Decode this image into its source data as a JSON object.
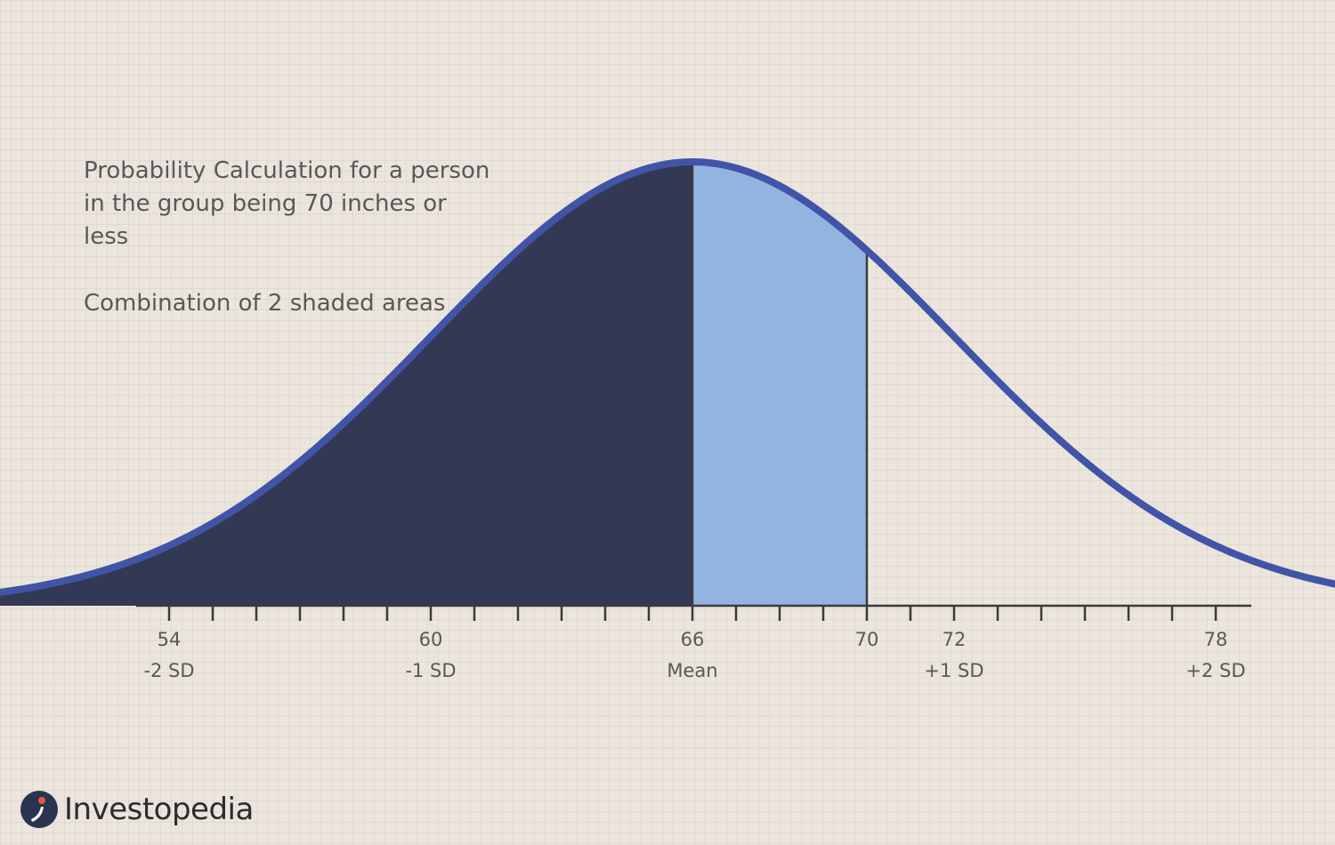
{
  "description": {
    "title": "Probability Calculation for a person in the group being 70 inches or less",
    "subtitle": "Combination of 2 shaded areas"
  },
  "chart_data": {
    "type": "area",
    "distribution": "normal",
    "mean": 66,
    "sd": 6,
    "xlim": [
      49,
      82.5
    ],
    "tick_labels": [
      {
        "x": 54,
        "value": "54",
        "sd_label": "-2 SD"
      },
      {
        "x": 60,
        "value": "60",
        "sd_label": "-1 SD"
      },
      {
        "x": 66,
        "value": "66",
        "sd_label": "Mean"
      },
      {
        "x": 70,
        "value": "70",
        "sd_label": ""
      },
      {
        "x": 72,
        "value": "72",
        "sd_label": "+1 SD"
      },
      {
        "x": 78,
        "value": "78",
        "sd_label": "+2 SD"
      }
    ],
    "shaded_regions": [
      {
        "from": 49,
        "to": 66,
        "color": "#333954"
      },
      {
        "from": 66,
        "to": 70,
        "color": "#93b4e0"
      }
    ],
    "marker_lines": [
      66,
      70
    ],
    "curve_color": "#4254a7",
    "axis_color": "#3a3a3c"
  },
  "brand": {
    "name": "Investopedia",
    "logo_colors": {
      "circle": "#2a3350",
      "dot": "#e25a3a"
    }
  }
}
